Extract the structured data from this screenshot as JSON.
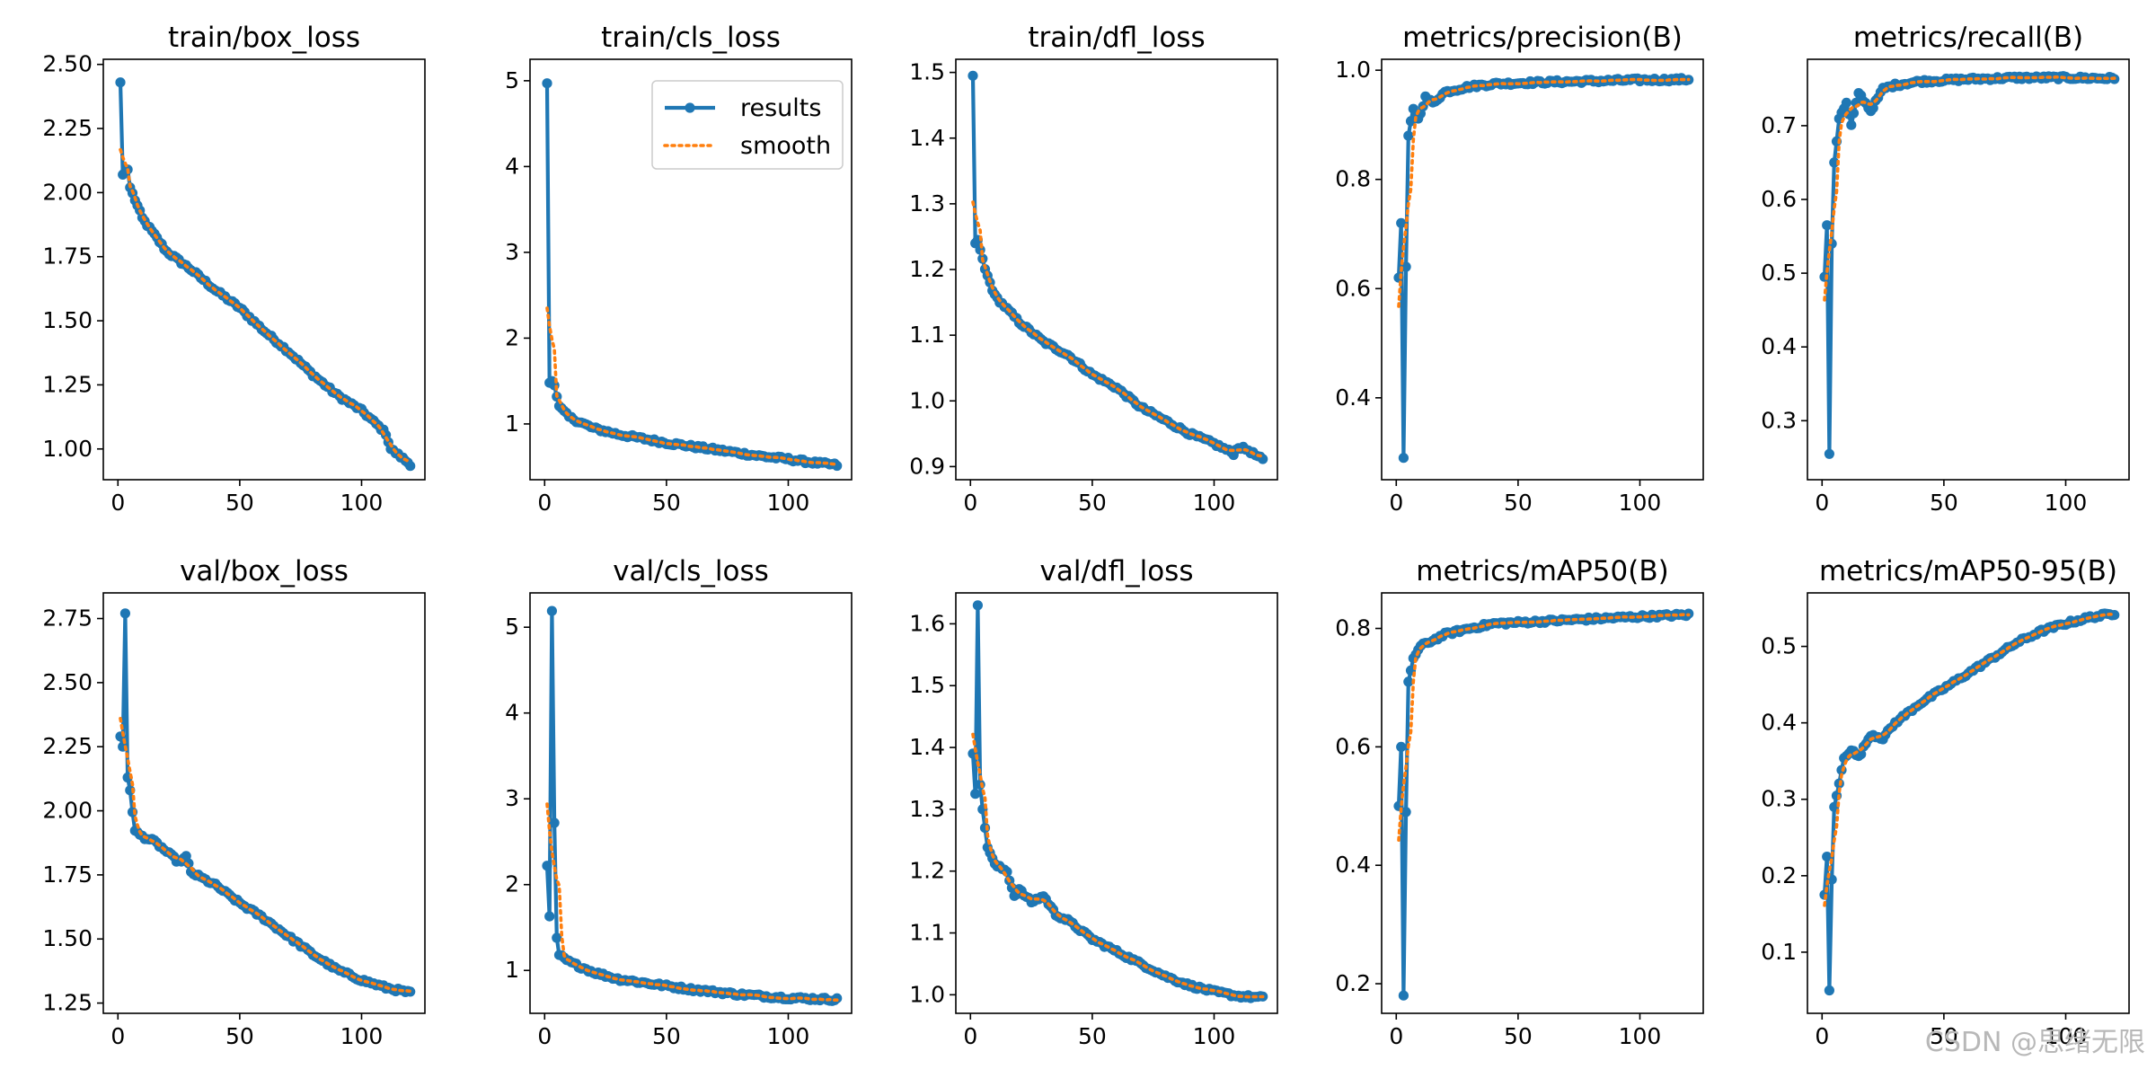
{
  "colors": {
    "results": "#1f77b4",
    "smooth": "#ff7f0e",
    "axis": "#000000",
    "background": "#ffffff"
  },
  "watermark": "CSDN @思绪无限",
  "chart_data": {
    "type": "line",
    "legend": {
      "entries": [
        "results",
        "smooth"
      ],
      "location": "upper-right of train/cls_loss panel"
    },
    "panels": [
      {
        "title": "train/box_loss",
        "xlim": [
          -6,
          126
        ],
        "xticks": [
          0,
          50,
          100
        ],
        "ylim": [
          0.88,
          2.52
        ],
        "yticks": [
          1.0,
          1.25,
          1.5,
          1.75,
          2.0,
          2.25,
          2.5
        ],
        "ytick_labels": [
          "1.00",
          "1.25",
          "1.50",
          "1.75",
          "2.00",
          "2.25",
          "2.50"
        ],
        "spikes": [
          [
            1,
            2.43
          ],
          [
            2,
            2.07
          ],
          [
            3,
            2.08
          ],
          [
            4,
            2.09
          ],
          [
            5,
            2.02
          ]
        ],
        "curve": [
          [
            5,
            2.02
          ],
          [
            10,
            1.9
          ],
          [
            20,
            1.77
          ],
          [
            30,
            1.7
          ],
          [
            40,
            1.62
          ],
          [
            50,
            1.55
          ],
          [
            60,
            1.46
          ],
          [
            70,
            1.38
          ],
          [
            80,
            1.29
          ],
          [
            90,
            1.21
          ],
          [
            100,
            1.15
          ],
          [
            108,
            1.08
          ],
          [
            110,
            1.06
          ],
          [
            112,
            1.0
          ],
          [
            116,
            0.97
          ],
          [
            120,
            0.94
          ]
        ]
      },
      {
        "title": "train/cls_loss",
        "xlim": [
          -6,
          126
        ],
        "xticks": [
          0,
          50,
          100
        ],
        "ylim": [
          0.35,
          5.25
        ],
        "yticks": [
          1,
          2,
          3,
          4,
          5
        ],
        "ytick_labels": [
          "1",
          "2",
          "3",
          "4",
          "5"
        ],
        "legend": true,
        "spikes": [
          [
            1,
            4.97
          ],
          [
            2,
            1.48
          ],
          [
            3,
            1.5
          ],
          [
            4,
            1.45
          ]
        ],
        "curve": [
          [
            4,
            1.45
          ],
          [
            6,
            1.2
          ],
          [
            10,
            1.08
          ],
          [
            20,
            0.95
          ],
          [
            30,
            0.88
          ],
          [
            40,
            0.83
          ],
          [
            50,
            0.78
          ],
          [
            60,
            0.74
          ],
          [
            70,
            0.7
          ],
          [
            80,
            0.66
          ],
          [
            90,
            0.62
          ],
          [
            100,
            0.59
          ],
          [
            110,
            0.55
          ],
          [
            120,
            0.52
          ]
        ]
      },
      {
        "title": "train/dfl_loss",
        "xlim": [
          -6,
          126
        ],
        "xticks": [
          0,
          50,
          100
        ],
        "ylim": [
          0.88,
          1.52
        ],
        "yticks": [
          0.9,
          1.0,
          1.1,
          1.2,
          1.3,
          1.4,
          1.5
        ],
        "ytick_labels": [
          "0.9",
          "1.0",
          "1.1",
          "1.2",
          "1.3",
          "1.4",
          "1.5"
        ],
        "spikes": [
          [
            1,
            1.495
          ],
          [
            2,
            1.24
          ],
          [
            3,
            1.245
          ],
          [
            4,
            1.23
          ]
        ],
        "curve": [
          [
            4,
            1.23
          ],
          [
            6,
            1.2
          ],
          [
            10,
            1.16
          ],
          [
            20,
            1.12
          ],
          [
            30,
            1.09
          ],
          [
            40,
            1.07
          ],
          [
            50,
            1.04
          ],
          [
            60,
            1.02
          ],
          [
            70,
            0.99
          ],
          [
            80,
            0.97
          ],
          [
            90,
            0.95
          ],
          [
            100,
            0.935
          ],
          [
            108,
            0.92
          ],
          [
            110,
            0.93
          ],
          [
            114,
            0.925
          ],
          [
            120,
            0.91
          ]
        ]
      },
      {
        "title": "metrics/precision(B)",
        "xlim": [
          -6,
          126
        ],
        "xticks": [
          0,
          50,
          100
        ],
        "ylim": [
          0.25,
          1.02
        ],
        "yticks": [
          0.4,
          0.6,
          0.8,
          1.0
        ],
        "ytick_labels": [
          "0.4",
          "0.6",
          "0.8",
          "1.0"
        ],
        "spikes": [
          [
            1,
            0.62
          ],
          [
            2,
            0.72
          ],
          [
            3,
            0.29
          ],
          [
            4,
            0.64
          ],
          [
            5,
            0.88
          ]
        ],
        "curve": [
          [
            5,
            0.88
          ],
          [
            7,
            0.93
          ],
          [
            9,
            0.91
          ],
          [
            12,
            0.95
          ],
          [
            15,
            0.94
          ],
          [
            20,
            0.96
          ],
          [
            30,
            0.97
          ],
          [
            40,
            0.975
          ],
          [
            60,
            0.978
          ],
          [
            80,
            0.98
          ],
          [
            100,
            0.982
          ],
          [
            120,
            0.983
          ]
        ]
      },
      {
        "title": "metrics/recall(B)",
        "xlim": [
          -6,
          126
        ],
        "xticks": [
          0,
          50,
          100
        ],
        "ylim": [
          0.22,
          0.79
        ],
        "yticks": [
          0.3,
          0.4,
          0.5,
          0.6,
          0.7
        ],
        "ytick_labels": [
          "0.3",
          "0.4",
          "0.5",
          "0.6",
          "0.7"
        ],
        "spikes": [
          [
            1,
            0.495
          ],
          [
            2,
            0.565
          ],
          [
            3,
            0.255
          ],
          [
            4,
            0.54
          ],
          [
            5,
            0.65
          ]
        ],
        "curve": [
          [
            5,
            0.65
          ],
          [
            7,
            0.71
          ],
          [
            10,
            0.73
          ],
          [
            12,
            0.7
          ],
          [
            15,
            0.745
          ],
          [
            20,
            0.72
          ],
          [
            25,
            0.75
          ],
          [
            30,
            0.755
          ],
          [
            40,
            0.76
          ],
          [
            60,
            0.763
          ],
          [
            80,
            0.765
          ],
          [
            100,
            0.765
          ],
          [
            120,
            0.764
          ]
        ]
      },
      {
        "title": "val/box_loss",
        "xlim": [
          -6,
          126
        ],
        "xticks": [
          0,
          50,
          100
        ],
        "ylim": [
          1.21,
          2.85
        ],
        "yticks": [
          1.25,
          1.5,
          1.75,
          2.0,
          2.25,
          2.5,
          2.75
        ],
        "ytick_labels": [
          "1.25",
          "1.50",
          "1.75",
          "2.00",
          "2.25",
          "2.50",
          "2.75"
        ],
        "spikes": [
          [
            1,
            2.29
          ],
          [
            2,
            2.25
          ],
          [
            3,
            2.77
          ],
          [
            4,
            2.13
          ],
          [
            5,
            2.08
          ]
        ],
        "curve": [
          [
            5,
            2.08
          ],
          [
            7,
            1.92
          ],
          [
            10,
            1.9
          ],
          [
            15,
            1.88
          ],
          [
            20,
            1.84
          ],
          [
            25,
            1.8
          ],
          [
            28,
            1.82
          ],
          [
            30,
            1.76
          ],
          [
            40,
            1.71
          ],
          [
            50,
            1.64
          ],
          [
            60,
            1.58
          ],
          [
            70,
            1.51
          ],
          [
            80,
            1.44
          ],
          [
            90,
            1.38
          ],
          [
            100,
            1.34
          ],
          [
            110,
            1.31
          ],
          [
            120,
            1.29
          ]
        ]
      },
      {
        "title": "val/cls_loss",
        "xlim": [
          -6,
          126
        ],
        "xticks": [
          0,
          50,
          100
        ],
        "ylim": [
          0.5,
          5.4
        ],
        "yticks": [
          1,
          2,
          3,
          4,
          5
        ],
        "ytick_labels": [
          "1",
          "2",
          "3",
          "4",
          "5"
        ],
        "spikes": [
          [
            1,
            2.22
          ],
          [
            2,
            1.63
          ],
          [
            3,
            5.19
          ],
          [
            4,
            2.72
          ],
          [
            5,
            1.38
          ],
          [
            6,
            1.18
          ]
        ],
        "curve": [
          [
            6,
            1.18
          ],
          [
            10,
            1.1
          ],
          [
            20,
            0.98
          ],
          [
            30,
            0.9
          ],
          [
            40,
            0.86
          ],
          [
            50,
            0.82
          ],
          [
            60,
            0.78
          ],
          [
            70,
            0.75
          ],
          [
            80,
            0.72
          ],
          [
            90,
            0.7
          ],
          [
            100,
            0.68
          ],
          [
            110,
            0.67
          ],
          [
            120,
            0.66
          ]
        ]
      },
      {
        "title": "val/dfl_loss",
        "xlim": [
          -6,
          126
        ],
        "xticks": [
          0,
          50,
          100
        ],
        "ylim": [
          0.97,
          1.65
        ],
        "yticks": [
          1.0,
          1.1,
          1.2,
          1.3,
          1.4,
          1.5,
          1.6
        ],
        "ytick_labels": [
          "1.0",
          "1.1",
          "1.2",
          "1.3",
          "1.4",
          "1.5",
          "1.6"
        ],
        "spikes": [
          [
            1,
            1.39
          ],
          [
            2,
            1.325
          ],
          [
            3,
            1.63
          ],
          [
            4,
            1.34
          ],
          [
            5,
            1.3
          ]
        ],
        "curve": [
          [
            5,
            1.3
          ],
          [
            7,
            1.24
          ],
          [
            10,
            1.21
          ],
          [
            15,
            1.2
          ],
          [
            18,
            1.16
          ],
          [
            20,
            1.17
          ],
          [
            25,
            1.15
          ],
          [
            30,
            1.16
          ],
          [
            35,
            1.13
          ],
          [
            40,
            1.12
          ],
          [
            50,
            1.09
          ],
          [
            60,
            1.07
          ],
          [
            70,
            1.05
          ],
          [
            80,
            1.03
          ],
          [
            90,
            1.015
          ],
          [
            100,
            1.005
          ],
          [
            110,
            0.998
          ],
          [
            120,
            0.995
          ]
        ]
      },
      {
        "title": "metrics/mAP50(B)",
        "xlim": [
          -6,
          126
        ],
        "xticks": [
          0,
          50,
          100
        ],
        "ylim": [
          0.15,
          0.86
        ],
        "yticks": [
          0.2,
          0.4,
          0.6,
          0.8
        ],
        "ytick_labels": [
          "0.2",
          "0.4",
          "0.6",
          "0.8"
        ],
        "spikes": [
          [
            1,
            0.5
          ],
          [
            2,
            0.6
          ],
          [
            3,
            0.18
          ],
          [
            4,
            0.49
          ],
          [
            5,
            0.71
          ]
        ],
        "curve": [
          [
            5,
            0.71
          ],
          [
            7,
            0.75
          ],
          [
            10,
            0.77
          ],
          [
            15,
            0.78
          ],
          [
            20,
            0.79
          ],
          [
            30,
            0.8
          ],
          [
            40,
            0.808
          ],
          [
            60,
            0.812
          ],
          [
            80,
            0.816
          ],
          [
            100,
            0.82
          ],
          [
            120,
            0.823
          ]
        ]
      },
      {
        "title": "metrics/mAP50-95(B)",
        "xlim": [
          -6,
          126
        ],
        "xticks": [
          0,
          50,
          100
        ],
        "ylim": [
          0.02,
          0.57
        ],
        "yticks": [
          0.1,
          0.2,
          0.3,
          0.4,
          0.5
        ],
        "ytick_labels": [
          "0.1",
          "0.2",
          "0.3",
          "0.4",
          "0.5"
        ],
        "spikes": [
          [
            1,
            0.175
          ],
          [
            2,
            0.225
          ],
          [
            3,
            0.05
          ],
          [
            4,
            0.195
          ],
          [
            5,
            0.29
          ]
        ],
        "curve": [
          [
            5,
            0.29
          ],
          [
            7,
            0.32
          ],
          [
            9,
            0.355
          ],
          [
            12,
            0.365
          ],
          [
            15,
            0.355
          ],
          [
            20,
            0.385
          ],
          [
            25,
            0.38
          ],
          [
            30,
            0.4
          ],
          [
            40,
            0.425
          ],
          [
            50,
            0.445
          ],
          [
            60,
            0.465
          ],
          [
            70,
            0.485
          ],
          [
            80,
            0.505
          ],
          [
            90,
            0.52
          ],
          [
            100,
            0.53
          ],
          [
            110,
            0.538
          ],
          [
            120,
            0.543
          ]
        ]
      }
    ]
  }
}
